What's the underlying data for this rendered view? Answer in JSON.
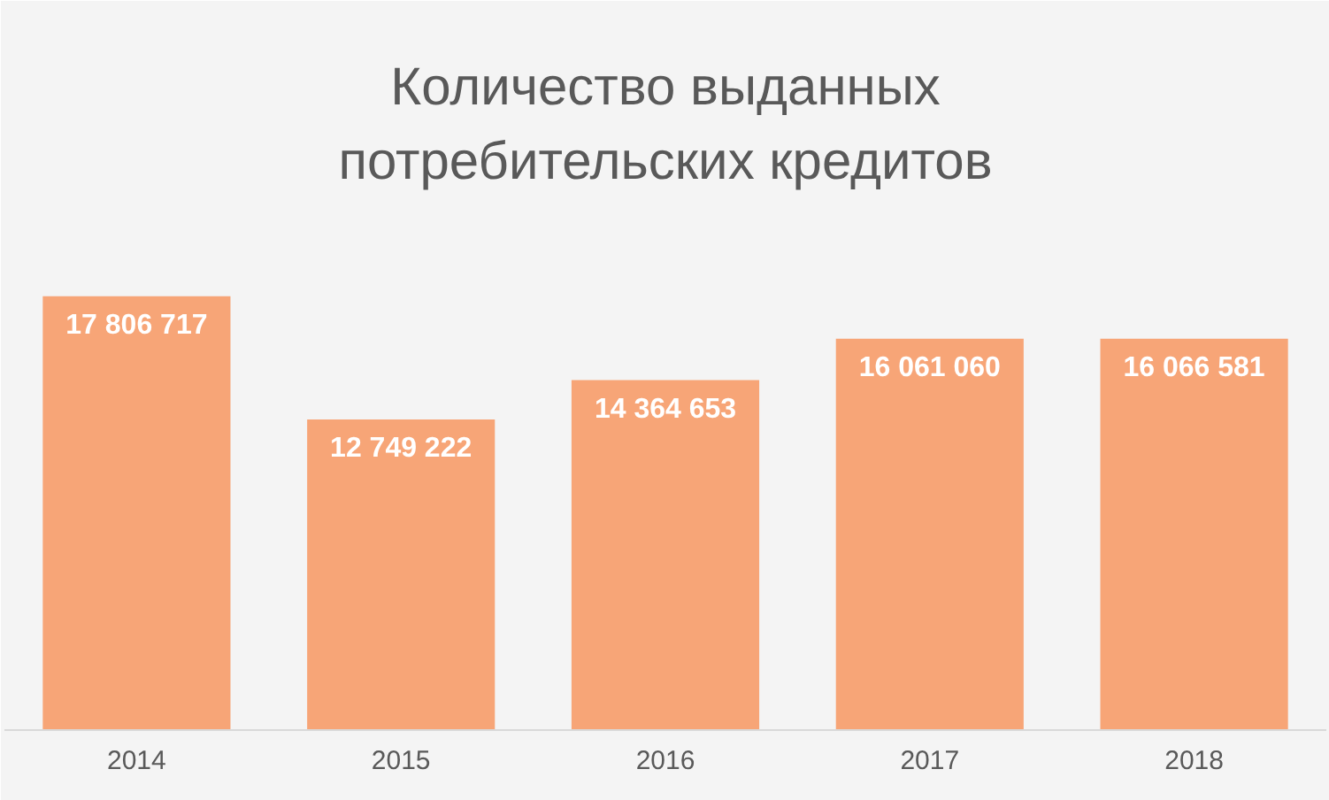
{
  "chart_data": {
    "type": "bar",
    "title": "Количество выданных потребительских кредитов",
    "categories": [
      "2014",
      "2015",
      "2016",
      "2017",
      "2018"
    ],
    "values": [
      17806717,
      12749222,
      14364653,
      16061060,
      16066581
    ],
    "color": "#f7a577",
    "data_labels": true,
    "grid": false
  }
}
